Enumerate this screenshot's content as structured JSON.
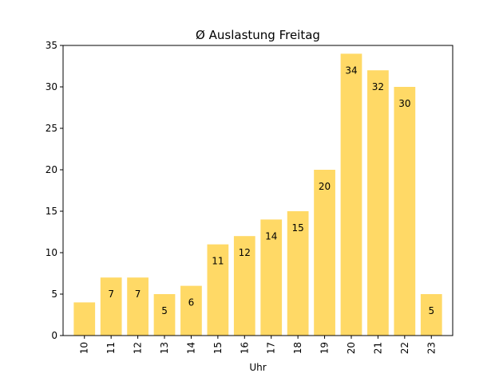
{
  "chart_data": {
    "type": "bar",
    "title": "Ø Auslastung Freitag",
    "xlabel": "Uhr",
    "ylabel": "",
    "categories": [
      "10",
      "11",
      "12",
      "13",
      "14",
      "15",
      "16",
      "17",
      "18",
      "19",
      "20",
      "21",
      "22",
      "23"
    ],
    "values": [
      4,
      7,
      7,
      5,
      6,
      11,
      12,
      14,
      15,
      20,
      34,
      32,
      30,
      5
    ],
    "data_labels": [
      null,
      "7",
      "7",
      "5",
      "6",
      "11",
      "12",
      "14",
      "15",
      "20",
      "34",
      "32",
      "30",
      "5"
    ],
    "ylim": [
      0,
      35
    ],
    "yticks": [
      "0",
      "5",
      "10",
      "15",
      "20",
      "25",
      "30",
      "35"
    ],
    "bar_color": "#ffd966",
    "grid": false,
    "legend": "none"
  }
}
